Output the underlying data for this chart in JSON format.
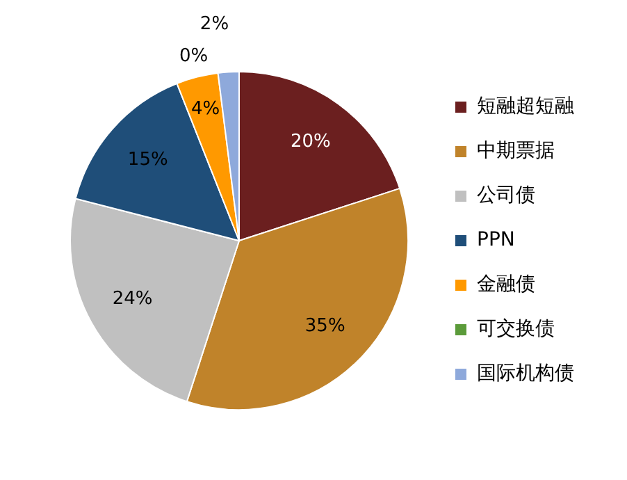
{
  "chart_data": {
    "type": "pie",
    "categories": [
      "短融超短融",
      "中期票据",
      "公司债",
      "PPN",
      "金融债",
      "可交换债",
      "国际机构债"
    ],
    "values": [
      20,
      35,
      24,
      15,
      4,
      0,
      2
    ],
    "colors": [
      "#6b1f1f",
      "#c0832a",
      "#c0c0c0",
      "#1f4e79",
      "#ff9900",
      "#5b9b3a",
      "#8ea9db"
    ],
    "value_labels": [
      "20%",
      "35%",
      "24%",
      "15%",
      "4%",
      "0%",
      "2%"
    ],
    "legend": "right"
  }
}
